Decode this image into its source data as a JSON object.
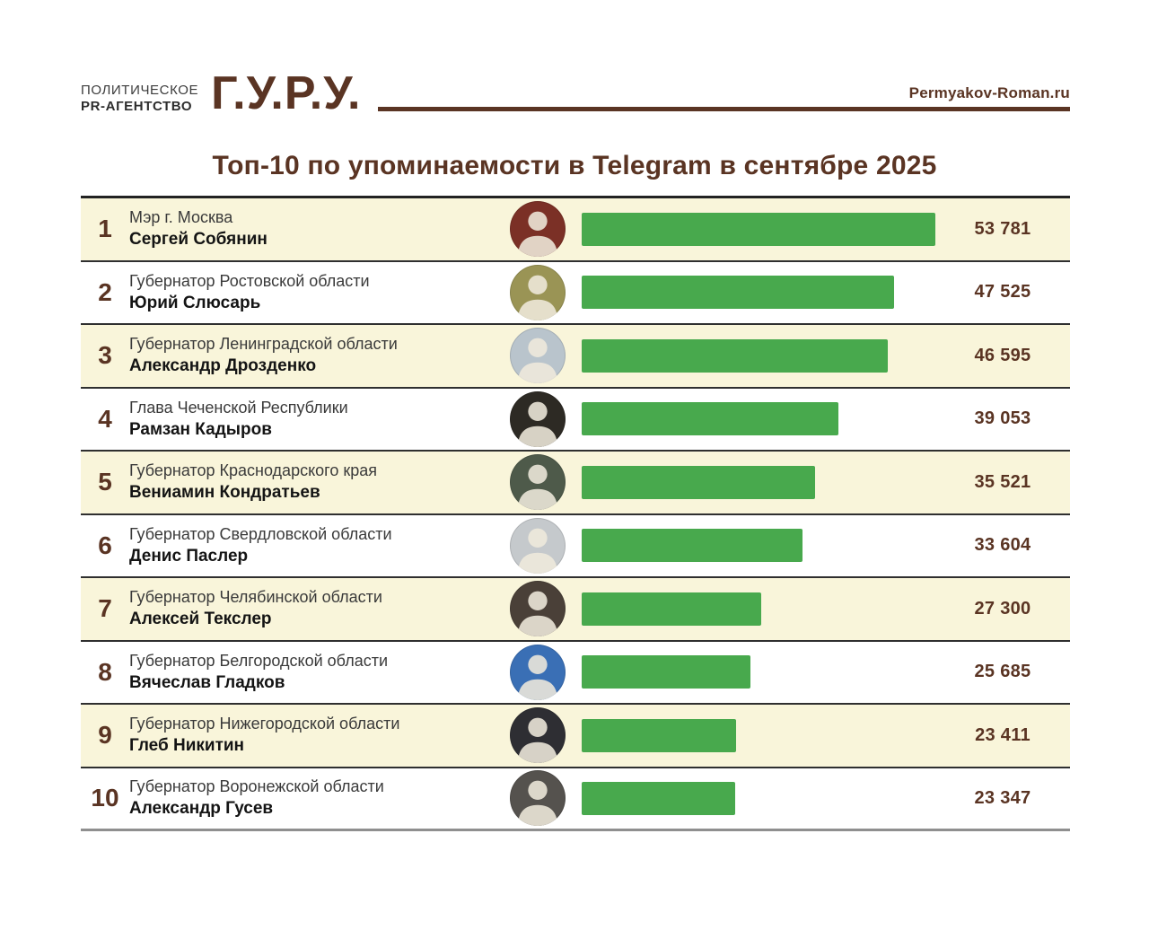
{
  "header": {
    "agency_line1": "ПОЛИТИЧЕСКОЕ",
    "agency_line2": "PR-АГЕНТСТВО",
    "logo": "Г.У.Р.У.",
    "website": "Permyakov-Roman.ru"
  },
  "title": "Топ-10 по упоминаемости в Telegram в сентябре 2025",
  "colors": {
    "brand_brown": "#5a3423",
    "bar_green": "#48a94d",
    "row_cream": "#f9f5da",
    "row_white": "#ffffff"
  },
  "chart_data": {
    "type": "bar",
    "orientation": "horizontal",
    "title": "Топ-10 по упоминаемости в Telegram в сентябре 2025",
    "value_axis_max": 53781,
    "grid": false,
    "legend": false,
    "rows": [
      {
        "rank": "1",
        "position": "Мэр г. Москва",
        "name": "Сергей Собянин",
        "value": 53781,
        "value_label": "53 781",
        "photo_bg": "#7b3026"
      },
      {
        "rank": "2",
        "position": "Губернатор Ростовской области",
        "name": "Юрий Слюсарь",
        "value": 47525,
        "value_label": "47 525",
        "photo_bg": "#9a9455"
      },
      {
        "rank": "3",
        "position": "Губернатор Ленинградской области",
        "name": "Александр Дрозденко",
        "value": 46595,
        "value_label": "46 595",
        "photo_bg": "#b9c4cc"
      },
      {
        "rank": "4",
        "position": "Глава Чеченской Республики",
        "name": "Рамзан Кадыров",
        "value": 39053,
        "value_label": "39 053",
        "photo_bg": "#2d2a24"
      },
      {
        "rank": "5",
        "position": "Губернатор Краснодарского края",
        "name": "Вениамин Кондратьев",
        "value": 35521,
        "value_label": "35 521",
        "photo_bg": "#4e5a4a"
      },
      {
        "rank": "6",
        "position": "Губернатор Свердловской области",
        "name": "Денис Паслер",
        "value": 33604,
        "value_label": "33 604",
        "photo_bg": "#c5c9cc"
      },
      {
        "rank": "7",
        "position": "Губернатор Челябинской области",
        "name": "Алексей Текслер",
        "value": 27300,
        "value_label": "27 300",
        "photo_bg": "#4a4038"
      },
      {
        "rank": "8",
        "position": "Губернатор Белгородской области",
        "name": "Вячеслав Гладков",
        "value": 25685,
        "value_label": "25 685",
        "photo_bg": "#3a6fb5"
      },
      {
        "rank": "9",
        "position": "Губернатор Нижегородской области",
        "name": "Глеб Никитин",
        "value": 23411,
        "value_label": "23 411",
        "photo_bg": "#2e2e33"
      },
      {
        "rank": "10",
        "position": "Губернатор Воронежской области",
        "name": "Александр Гусев",
        "value": 23347,
        "value_label": "23 347",
        "photo_bg": "#55524e"
      }
    ]
  }
}
